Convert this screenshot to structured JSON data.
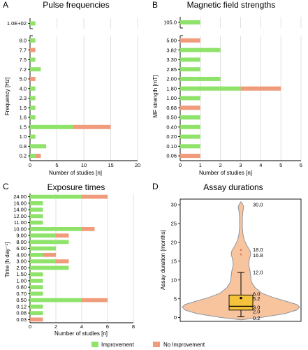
{
  "colors": {
    "improvement": "#8fe36a",
    "no_improvement": "#f09c7c",
    "violin_fill": "#f7c49e",
    "violin_edge": "#7d8fa0",
    "box_fill": "#f5c33b",
    "grid": "#d9d9d9"
  },
  "legend": {
    "improvement": "Improvement",
    "no_improvement": "No Improvement"
  },
  "chart_data": [
    {
      "panel": "A",
      "type": "bar",
      "orientation": "horizontal",
      "stacked": true,
      "title": "Pulse frequencies",
      "xlabel": "Number of studies [n]",
      "ylabel": "Frequency [Hz]",
      "xlim": [
        0,
        20
      ],
      "xticks": [
        0,
        5,
        10,
        15,
        20
      ],
      "broken_axis_top": "1.0E+02",
      "categories": [
        "1.0E+02",
        "8.0",
        "7.7",
        "7.5",
        "7.2",
        "5.0",
        "4.0",
        "2.3",
        "1.9",
        "1.6",
        "1.5",
        "1.0",
        "0.8",
        "0.2"
      ],
      "series": [
        {
          "name": "Improvement",
          "values": [
            1,
            1,
            0,
            1,
            2,
            0,
            1,
            1,
            1,
            1,
            8,
            1,
            3,
            1
          ]
        },
        {
          "name": "No Improvement",
          "values": [
            0,
            0,
            1,
            0,
            0,
            1,
            0,
            0,
            0,
            0,
            7,
            0,
            0,
            1
          ]
        }
      ]
    },
    {
      "panel": "B",
      "type": "bar",
      "orientation": "horizontal",
      "stacked": true,
      "title": "Magnetic field strengths",
      "xlabel": "Number of studies [n]",
      "ylabel": "MF strength [mT]",
      "xlim": [
        0,
        6
      ],
      "xticks": [
        0,
        1,
        2,
        3,
        4,
        5,
        6
      ],
      "broken_axis_top": "105.0",
      "categories": [
        "105.0",
        "5.00",
        "3.82",
        "3.30",
        "2.85",
        "2.00",
        "1.80",
        "1.00",
        "0.68",
        "0.50",
        "0.40",
        "0.20",
        "0.10",
        "0.06"
      ],
      "series": [
        {
          "name": "Improvement",
          "values": [
            1,
            0,
            2,
            1,
            1,
            2,
            3,
            1,
            0,
            1,
            1,
            1,
            1,
            0
          ]
        },
        {
          "name": "No Improvement",
          "values": [
            0,
            1,
            0,
            0,
            0,
            0,
            2,
            0,
            1,
            0,
            0,
            0,
            0,
            1
          ]
        }
      ]
    },
    {
      "panel": "C",
      "type": "bar",
      "orientation": "horizontal",
      "stacked": true,
      "title": "Exposure times",
      "xlabel": "Number of studies [n]",
      "ylabel": "Time [h day⁻¹]",
      "xlim": [
        0,
        8
      ],
      "xticks": [
        0,
        2,
        4,
        6,
        8
      ],
      "categories": [
        "24.00",
        "16.00",
        "14.00",
        "12.00",
        "11.00",
        "10.00",
        "9.00",
        "8.00",
        "6.00",
        "4.00",
        "3.00",
        "2.00",
        "1.50",
        "1.00",
        "0.80",
        "0.70",
        "0.50",
        "0.12",
        "0.08",
        "0.03"
      ],
      "series": [
        {
          "name": "Improvement",
          "values": [
            4,
            1,
            1,
            1,
            1,
            4,
            2,
            3,
            2,
            1,
            2,
            3,
            1,
            1,
            1,
            1,
            4,
            1,
            1,
            0
          ]
        },
        {
          "name": "No Improvement",
          "values": [
            2,
            0,
            0,
            0,
            0,
            1,
            1,
            0,
            0,
            1,
            1,
            0,
            0,
            0,
            0,
            0,
            2,
            0,
            0,
            1
          ]
        }
      ]
    },
    {
      "panel": "D",
      "type": "violin",
      "title": "Assay durations",
      "ylabel": "Assay duration [months]",
      "ylim": [
        -1,
        31.5
      ],
      "yticks": [
        0,
        5,
        10,
        15,
        20,
        25,
        30
      ],
      "annotations": [
        "30.0",
        "18.0",
        "16.8",
        "12.0",
        "6.0",
        "5.2",
        "3.0",
        "2.0",
        "0.2"
      ],
      "annotation_values": [
        30.0,
        18.0,
        16.8,
        12.0,
        6.0,
        5.2,
        3.0,
        2.0,
        0.2
      ],
      "box": {
        "whisker_low": 0.2,
        "q1": 2.0,
        "median": 3.0,
        "q3": 6.0,
        "whisker_high": 12.0,
        "mean": 5.2
      }
    }
  ]
}
